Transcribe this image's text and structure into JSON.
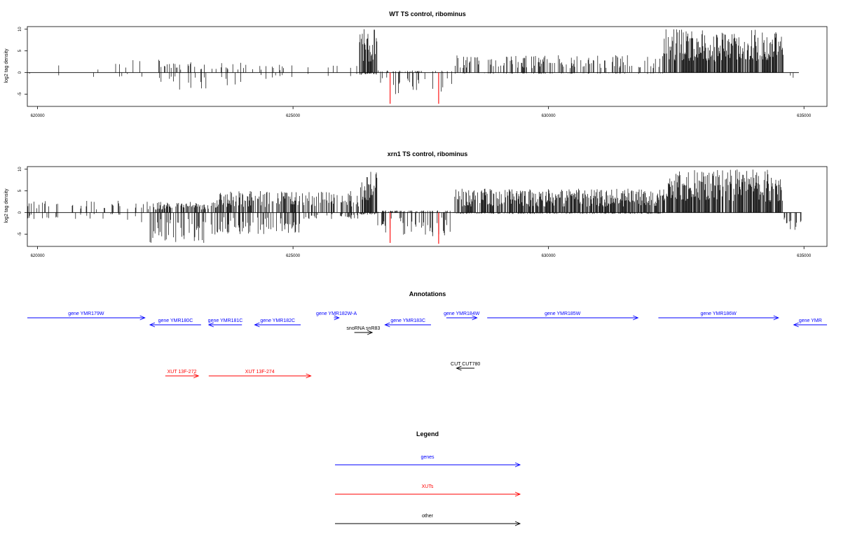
{
  "colors": {
    "gene": "#0000ff",
    "xut": "#ff0000",
    "other": "#000000",
    "neg_highlight": "#ff0000"
  },
  "chart_data": [
    {
      "type": "bar",
      "title": "WT TS control, ribominus",
      "ylabel": "log2 tag density",
      "xlim": [
        619800,
        635450
      ],
      "ylim": [
        -7.8,
        10.6
      ],
      "xticks": [
        620000,
        625000,
        630000,
        635000
      ],
      "yticks": [
        10,
        5,
        0,
        -5
      ],
      "grid": false,
      "regions": [
        {
          "x0": 619800,
          "x1": 621300,
          "pos_max": 2.0,
          "neg_max": 1.0,
          "density": 0.05
        },
        {
          "x0": 621300,
          "x1": 622400,
          "pos_max": 3.0,
          "neg_max": 1.5,
          "density": 0.08
        },
        {
          "x0": 622400,
          "x1": 624000,
          "pos_max": 2.5,
          "neg_max": 4.0,
          "density": 0.25
        },
        {
          "x0": 624000,
          "x1": 625200,
          "pos_max": 2.0,
          "neg_max": 2.0,
          "density": 0.1
        },
        {
          "x0": 625200,
          "x1": 626300,
          "pos_max": 2.0,
          "neg_max": 1.0,
          "density": 0.05
        },
        {
          "x0": 626300,
          "x1": 626650,
          "pos_max": 10.0,
          "neg_max": 0.5,
          "density": 1.0
        },
        {
          "x0": 626650,
          "x1": 628150,
          "pos_max": 0.5,
          "neg_max": 5.0,
          "density": 0.3
        },
        {
          "x0": 628150,
          "x1": 632250,
          "pos_max": 4.0,
          "neg_max": 0.3,
          "density": 0.35
        },
        {
          "x0": 632250,
          "x1": 634600,
          "pos_max": 10.0,
          "neg_max": 0.0,
          "density": 1.0
        },
        {
          "x0": 634600,
          "x1": 634900,
          "pos_max": 0.0,
          "neg_max": 2.0,
          "density": 0.05
        }
      ],
      "highlights": [
        {
          "x": 626900,
          "y": -7.2
        },
        {
          "x": 627850,
          "y": -7.2
        }
      ]
    },
    {
      "type": "bar",
      "title": "xrn1 TS control, ribominus",
      "ylabel": "log2 tag density",
      "xlim": [
        619800,
        635450
      ],
      "ylim": [
        -7.8,
        10.6
      ],
      "xticks": [
        620000,
        625000,
        630000,
        635000
      ],
      "yticks": [
        10,
        5,
        0,
        -5
      ],
      "grid": false,
      "regions": [
        {
          "x0": 619800,
          "x1": 621700,
          "pos_max": 2.8,
          "neg_max": 1.5,
          "density": 0.2
        },
        {
          "x0": 621700,
          "x1": 622200,
          "pos_max": 2.5,
          "neg_max": 2.5,
          "density": 0.25
        },
        {
          "x0": 622200,
          "x1": 623500,
          "pos_max": 2.5,
          "neg_max": 7.0,
          "density": 0.6
        },
        {
          "x0": 623500,
          "x1": 625200,
          "pos_max": 5.0,
          "neg_max": 5.0,
          "density": 0.7
        },
        {
          "x0": 625200,
          "x1": 626300,
          "pos_max": 5.0,
          "neg_max": 1.5,
          "density": 0.6
        },
        {
          "x0": 626300,
          "x1": 626650,
          "pos_max": 10.0,
          "neg_max": 0.5,
          "density": 1.0
        },
        {
          "x0": 626650,
          "x1": 628150,
          "pos_max": 0.5,
          "neg_max": 5.5,
          "density": 0.5
        },
        {
          "x0": 628150,
          "x1": 632250,
          "pos_max": 5.5,
          "neg_max": 0.3,
          "density": 0.9
        },
        {
          "x0": 632250,
          "x1": 634600,
          "pos_max": 10.0,
          "neg_max": 0.0,
          "density": 1.0
        },
        {
          "x0": 634600,
          "x1": 634950,
          "pos_max": 0.0,
          "neg_max": 4.0,
          "density": 0.6
        }
      ],
      "highlights": [
        {
          "x": 626900,
          "y": -7.0
        },
        {
          "x": 627850,
          "y": -7.2
        }
      ]
    }
  ],
  "annotations": {
    "title": "Annotations",
    "features": [
      {
        "label": "gene YMR179W",
        "type": "gene",
        "start": 619800,
        "end": 622100,
        "strand": "+",
        "row": 0
      },
      {
        "label": "gene YMR180C",
        "type": "gene",
        "start": 622200,
        "end": 623200,
        "strand": "-",
        "row": 1
      },
      {
        "label": "gene YMR181C",
        "type": "gene",
        "start": 623350,
        "end": 624000,
        "strand": "-",
        "row": 1
      },
      {
        "label": "gene YMR182C",
        "type": "gene",
        "start": 624250,
        "end": 625150,
        "strand": "-",
        "row": 1
      },
      {
        "label": "gene YMR182W-A",
        "type": "gene",
        "start": 625800,
        "end": 625900,
        "strand": "+",
        "row": 0
      },
      {
        "label": "snoRNA snR83",
        "type": "other",
        "start": 626200,
        "end": 626550,
        "strand": "+",
        "row": 2
      },
      {
        "label": "gene YMR183C",
        "type": "gene",
        "start": 626800,
        "end": 627700,
        "strand": "-",
        "row": 1
      },
      {
        "label": "gene YMR184W",
        "type": "gene",
        "start": 628000,
        "end": 628600,
        "strand": "+",
        "row": 0
      },
      {
        "label": "gene YMR185W",
        "type": "gene",
        "start": 628800,
        "end": 631750,
        "strand": "+",
        "row": 0
      },
      {
        "label": "gene YMR186W",
        "type": "gene",
        "start": 632150,
        "end": 634500,
        "strand": "+",
        "row": 0
      },
      {
        "label": "gene YMR",
        "type": "gene",
        "start": 634800,
        "end": 635450,
        "strand": "-",
        "row": 1
      },
      {
        "label": "CUT CUT780",
        "type": "other",
        "start": 628200,
        "end": 628550,
        "strand": "-",
        "row": 3
      },
      {
        "label": "XUT 13F-272",
        "type": "xut",
        "start": 622500,
        "end": 623150,
        "strand": "+",
        "row": 4
      },
      {
        "label": "XUT 13F-274",
        "type": "xut",
        "start": 623350,
        "end": 625350,
        "strand": "+",
        "row": 4
      }
    ]
  },
  "legend": {
    "title": "Legend",
    "items": [
      {
        "label": "genes",
        "type": "gene"
      },
      {
        "label": "XUTs",
        "type": "xut"
      },
      {
        "label": "other",
        "type": "other"
      }
    ]
  }
}
